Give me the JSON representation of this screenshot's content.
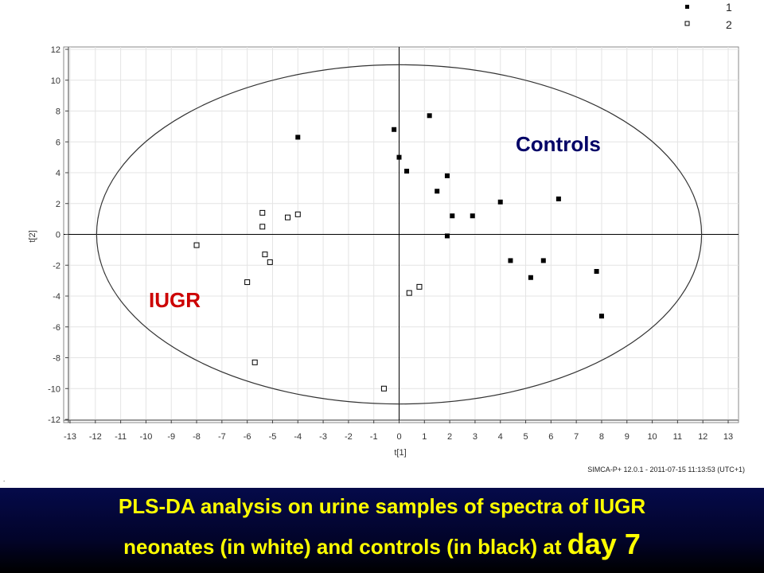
{
  "chart_data": {
    "type": "scatter",
    "title": "",
    "xlabel": "t[1]",
    "ylabel": "t[2]",
    "xlim": [
      -13,
      13
    ],
    "ylim": [
      -12,
      12
    ],
    "x_ticks": [
      -13,
      -12,
      -11,
      -10,
      -9,
      -8,
      -7,
      -6,
      -5,
      -4,
      -3,
      -2,
      -1,
      0,
      1,
      2,
      3,
      4,
      5,
      6,
      7,
      8,
      9,
      10,
      11,
      12,
      13
    ],
    "y_ticks": [
      -12,
      -10,
      -8,
      -6,
      -4,
      -2,
      0,
      2,
      4,
      6,
      8,
      10,
      12
    ],
    "grid": true,
    "legend_position": "top-right",
    "ellipse": {
      "cx": 0,
      "cy": 0,
      "rx": 11.95,
      "ry": 11
    },
    "series": [
      {
        "name": "1",
        "marker": "filled-square",
        "color": "#000000",
        "points": [
          [
            -4,
            6.3
          ],
          [
            -0.2,
            6.8
          ],
          [
            1.2,
            7.7
          ],
          [
            0,
            5
          ],
          [
            0.3,
            4.1
          ],
          [
            1.9,
            3.8
          ],
          [
            1.5,
            2.8
          ],
          [
            6.3,
            2.3
          ],
          [
            4,
            2.1
          ],
          [
            2.1,
            1.2
          ],
          [
            2.9,
            1.2
          ],
          [
            1.9,
            -0.1
          ],
          [
            4.4,
            -1.7
          ],
          [
            5.7,
            -1.7
          ],
          [
            5.2,
            -2.8
          ],
          [
            7.8,
            -2.4
          ],
          [
            8,
            -5.3
          ]
        ]
      },
      {
        "name": "2",
        "marker": "open-square",
        "color": "#ffffff",
        "points": [
          [
            -8,
            -0.7
          ],
          [
            -5.4,
            1.4
          ],
          [
            -4.4,
            1.1
          ],
          [
            -4,
            1.3
          ],
          [
            -5.4,
            0.5
          ],
          [
            -5.3,
            -1.3
          ],
          [
            -5.1,
            -1.8
          ],
          [
            -6,
            -3.1
          ],
          [
            -5.7,
            -8.3
          ],
          [
            0.8,
            -3.4
          ],
          [
            0.4,
            -3.8
          ],
          [
            -0.6,
            -10
          ]
        ]
      }
    ],
    "annotations": [
      {
        "text": "Controls",
        "color": "#000066"
      },
      {
        "text": "IUGR",
        "color": "#cc0000"
      }
    ]
  },
  "footer": "SIMCA-P+ 12.0.1 - 2011-07-15 11:13:53 (UTC+1)",
  "caption": {
    "line1": "PLS-DA analysis on urine samples of spectra of IUGR",
    "line2_prefix": "neonates (in white) and controls (in black) at ",
    "line2_emph": "day 7",
    "color": "#ffff00"
  }
}
